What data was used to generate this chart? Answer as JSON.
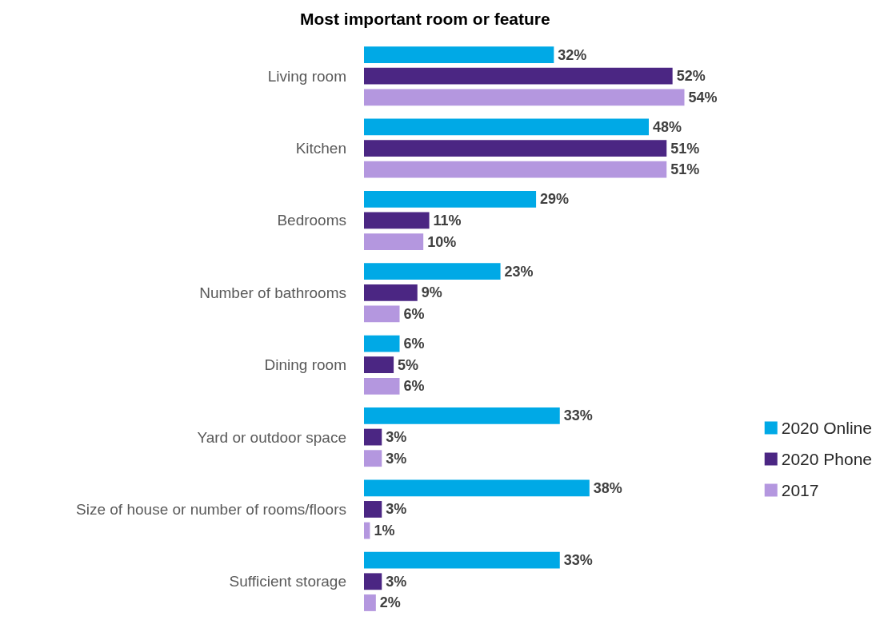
{
  "chart_data": {
    "type": "bar",
    "orientation": "horizontal",
    "title": "Most important room or feature",
    "categories": [
      "Living room",
      "Kitchen",
      "Bedrooms",
      "Number of bathrooms",
      "Dining room",
      "Yard or outdoor space",
      "Size of house or number of rooms/floors",
      "Sufficient storage"
    ],
    "series": [
      {
        "name": "2020 Online",
        "color": "#00a9e6",
        "values": [
          32,
          48,
          29,
          23,
          6,
          33,
          38,
          33
        ],
        "value_labels": [
          "32%",
          "48%",
          "29%",
          "23%",
          "6%",
          "33%",
          "38%",
          "33%"
        ]
      },
      {
        "name": "2020 Phone",
        "color": "#4b2683",
        "values": [
          52,
          51,
          11,
          9,
          5,
          3,
          3,
          3
        ],
        "value_labels": [
          "52%",
          "51%",
          "11%",
          "9%",
          "5%",
          "3%",
          "3%",
          "3%"
        ]
      },
      {
        "name": "2017",
        "color": "#b497df",
        "values": [
          54,
          51,
          10,
          6,
          6,
          3,
          1,
          2
        ],
        "value_labels": [
          "54%",
          "51%",
          "10%",
          "6%",
          "6%",
          "3%",
          "1%",
          "2%"
        ]
      }
    ],
    "legend": "right"
  }
}
